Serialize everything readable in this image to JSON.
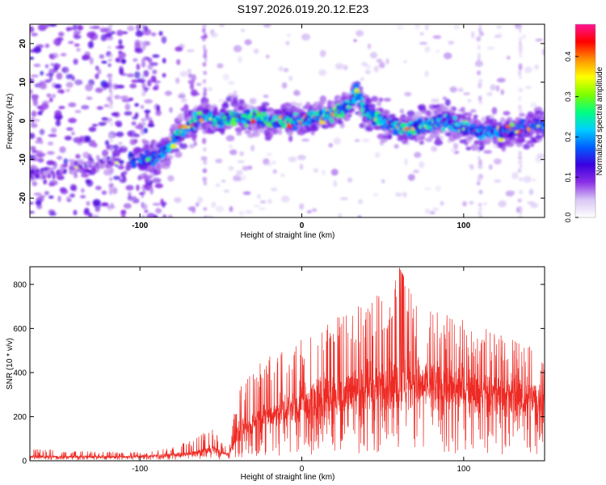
{
  "title": "S197.2026.019.20.12.E23",
  "chart_data": [
    {
      "type": "heatmap",
      "name": "spectrogram",
      "xlabel": "Height of straight line (km)",
      "ylabel": "Frequency (Hz)",
      "xlim": [
        -168,
        150
      ],
      "ylim": [
        -25,
        25
      ],
      "xticks": [
        -100,
        0,
        100
      ],
      "yticks": [
        -20,
        -10,
        0,
        10,
        20
      ],
      "colorbar": {
        "label": "Normalized spectral amplitude",
        "range": [
          0.0,
          0.48
        ],
        "ticks": [
          0.0,
          0.1,
          0.2,
          0.3,
          0.4
        ],
        "colors": [
          "#ffffff",
          "#d9c7f5",
          "#8b2fe6",
          "#3a00e0",
          "#0060ff",
          "#00d0ff",
          "#00ff80",
          "#7dff00",
          "#ffff00",
          "#ff9000",
          "#ff0000",
          "#ff1493"
        ]
      },
      "ridge": {
        "x": [
          -168,
          -120,
          -100,
          -88,
          -82,
          -78,
          -72,
          -66,
          -60,
          -50,
          -40,
          -30,
          -20,
          -10,
          0,
          10,
          20,
          30,
          34,
          38,
          45,
          55,
          65,
          75,
          85,
          95,
          105,
          115,
          125,
          135,
          150
        ],
        "y": [
          -14,
          -11,
          -10,
          -9,
          -7,
          -4,
          -2,
          0,
          1,
          0,
          1,
          1,
          0,
          0,
          0,
          1,
          2,
          4,
          8,
          3,
          1,
          -1,
          -2,
          -1,
          0,
          -1,
          -2,
          -3,
          -3,
          -2,
          -1
        ],
        "strength": [
          0.12,
          0.14,
          0.22,
          0.22,
          0.25,
          0.3,
          0.35,
          0.3,
          0.25,
          0.3,
          0.32,
          0.32,
          0.32,
          0.3,
          0.28,
          0.3,
          0.3,
          0.3,
          0.3,
          0.28,
          0.3,
          0.28,
          0.3,
          0.28,
          0.26,
          0.25,
          0.24,
          0.24,
          0.22,
          0.22,
          0.2
        ]
      }
    },
    {
      "type": "line",
      "name": "snr",
      "xlabel": "Height of straight line (km)",
      "ylabel": "SNR (10 * v/v)",
      "xlim": [
        -168,
        150
      ],
      "ylim": [
        0,
        880
      ],
      "xticks": [
        -100,
        0,
        100
      ],
      "yticks": [
        0,
        200,
        400,
        600,
        800
      ],
      "color": "#ee2a24",
      "envelope": {
        "x": [
          -168,
          -140,
          -110,
          -90,
          -80,
          -70,
          -60,
          -55,
          -50,
          -45,
          -40,
          -35,
          -30,
          -20,
          -10,
          0,
          10,
          20,
          30,
          40,
          50,
          60,
          70,
          80,
          90,
          100,
          110,
          120,
          130,
          140,
          150
        ],
        "mean": [
          18,
          18,
          18,
          22,
          26,
          30,
          45,
          55,
          35,
          30,
          120,
          150,
          170,
          200,
          230,
          260,
          280,
          300,
          320,
          330,
          340,
          350,
          350,
          340,
          330,
          320,
          310,
          300,
          290,
          280,
          280
        ],
        "max": [
          55,
          45,
          40,
          45,
          65,
          90,
          130,
          145,
          90,
          60,
          300,
          380,
          420,
          480,
          520,
          560,
          590,
          640,
          720,
          700,
          800,
          880,
          730,
          700,
          680,
          640,
          620,
          600,
          560,
          520,
          500
        ]
      }
    }
  ]
}
